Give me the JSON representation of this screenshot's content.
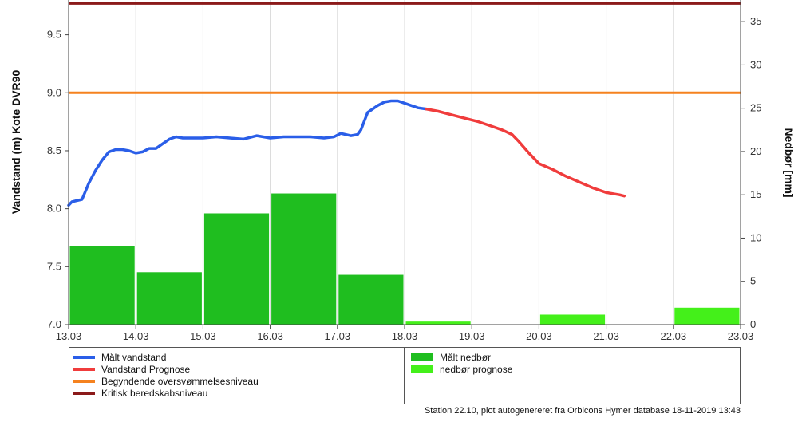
{
  "chart_data": {
    "type": "line",
    "x_ticks": [
      "13.03",
      "14.03",
      "15.03",
      "16.03",
      "17.03",
      "18.03",
      "19.03",
      "20.03",
      "21.03",
      "22.03",
      "23.03"
    ],
    "ylabel_left": "Vandstand (m) Kote DVR90",
    "ylabel_right": "Nedbør [mm]",
    "ylim_left": [
      7.0,
      9.8
    ],
    "ylim_right": [
      0,
      37.5
    ],
    "yticks_left": [
      "7.0",
      "7.5",
      "8.0",
      "8.5",
      "9.0",
      "9.5"
    ],
    "yticks_right": [
      "0",
      "5",
      "10",
      "15",
      "20",
      "25",
      "30",
      "35"
    ],
    "grid": "vertical",
    "legend_position": "bottom",
    "series": [
      {
        "name": "Målt vandstand",
        "type": "line",
        "axis": "left",
        "color": "#2a5ee8",
        "x": [
          13.0,
          13.05,
          13.12,
          13.2,
          13.3,
          13.4,
          13.5,
          13.6,
          13.7,
          13.8,
          13.9,
          14.0,
          14.1,
          14.2,
          14.3,
          14.4,
          14.5,
          14.6,
          14.7,
          14.8,
          15.0,
          15.2,
          15.4,
          15.6,
          15.8,
          16.0,
          16.2,
          16.4,
          16.6,
          16.8,
          16.95,
          17.05,
          17.2,
          17.3,
          17.35,
          17.45,
          17.6,
          17.7,
          17.8,
          17.9,
          18.0,
          18.1,
          18.2,
          18.32
        ],
        "values": [
          8.03,
          8.06,
          8.07,
          8.08,
          8.22,
          8.33,
          8.42,
          8.49,
          8.51,
          8.51,
          8.5,
          8.48,
          8.49,
          8.52,
          8.52,
          8.56,
          8.6,
          8.62,
          8.61,
          8.61,
          8.61,
          8.62,
          8.61,
          8.6,
          8.63,
          8.61,
          8.62,
          8.62,
          8.62,
          8.61,
          8.62,
          8.65,
          8.63,
          8.64,
          8.68,
          8.83,
          8.89,
          8.92,
          8.93,
          8.93,
          8.91,
          8.89,
          8.87,
          8.86
        ]
      },
      {
        "name": "Vandstand Prognose",
        "type": "line",
        "axis": "left",
        "color": "#f03c3c",
        "x": [
          18.32,
          18.5,
          18.7,
          18.9,
          19.1,
          19.3,
          19.45,
          19.6,
          19.7,
          19.85,
          20.0,
          20.2,
          20.4,
          20.6,
          20.8,
          21.0,
          21.2,
          21.27
        ],
        "values": [
          8.86,
          8.84,
          8.81,
          8.78,
          8.75,
          8.71,
          8.68,
          8.64,
          8.58,
          8.48,
          8.39,
          8.34,
          8.28,
          8.23,
          8.18,
          8.14,
          8.12,
          8.11
        ]
      },
      {
        "name": "Begyndende oversvømmelsesniveau",
        "type": "hline",
        "axis": "left",
        "color": "#f5821f",
        "value": 9.0
      },
      {
        "name": "Kritisk beredskabsniveau",
        "type": "hline",
        "axis": "left",
        "color": "#8b1a1a",
        "value": 9.77
      },
      {
        "name": "Målt nedbør",
        "type": "bar",
        "axis": "right",
        "color": "#1fbe1f",
        "bins": [
          [
            13.0,
            14.0
          ],
          [
            14.0,
            15.0
          ],
          [
            15.0,
            16.0
          ],
          [
            16.0,
            17.0
          ],
          [
            17.0,
            18.0
          ]
        ],
        "values": [
          9.1,
          6.1,
          12.9,
          15.2,
          5.8
        ]
      },
      {
        "name": "nedbør prognose",
        "type": "bar",
        "axis": "right",
        "color": "#44f01a",
        "bins": [
          [
            18.0,
            19.0
          ],
          [
            20.0,
            21.0
          ],
          [
            22.0,
            23.0
          ]
        ],
        "values": [
          0.4,
          1.2,
          2.0
        ]
      }
    ]
  },
  "footer": "Station 22.10, plot autogenereret fra Orbicons Hymer database 18-11-2019 13:43"
}
